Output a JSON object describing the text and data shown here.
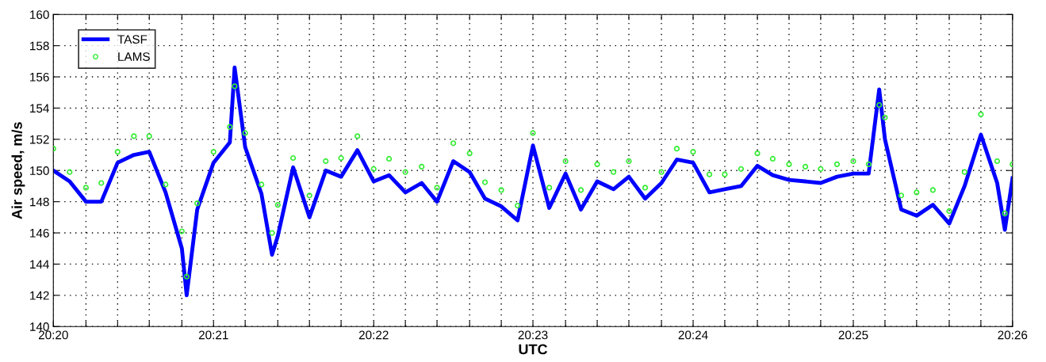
{
  "chart_data": {
    "type": "line",
    "xlabel": "UTC",
    "ylabel": "Air speed, m/s",
    "x": [
      20.3333,
      20.335,
      20.3367,
      20.3383,
      20.34,
      20.3417,
      20.3433,
      20.345,
      20.3467,
      20.3472,
      20.3483,
      20.35,
      20.3517,
      20.3522,
      20.3533,
      20.355,
      20.3561,
      20.3567,
      20.3583,
      20.36,
      20.3617,
      20.3633,
      20.365,
      20.3667,
      20.3683,
      20.37,
      20.3717,
      20.3733,
      20.375,
      20.3767,
      20.3783,
      20.38,
      20.3817,
      20.3833,
      20.385,
      20.3867,
      20.3883,
      20.39,
      20.3917,
      20.3933,
      20.395,
      20.3967,
      20.3983,
      20.4,
      20.4017,
      20.4033,
      20.405,
      20.4067,
      20.4083,
      20.41,
      20.4117,
      20.4133,
      20.415,
      20.4167,
      20.4183,
      20.4194,
      20.42,
      20.4217,
      20.4233,
      20.425,
      20.4267,
      20.4283,
      20.43,
      20.4317,
      20.4325,
      20.4333
    ],
    "series": [
      {
        "name": "TASF",
        "color": "#0000ff",
        "values": [
          150.0,
          149.3,
          148.0,
          148.0,
          150.5,
          151.0,
          151.2,
          148.6,
          145.0,
          142.0,
          147.5,
          150.5,
          151.8,
          156.6,
          151.5,
          148.5,
          144.6,
          145.8,
          150.2,
          147.0,
          150.0,
          149.6,
          151.3,
          149.3,
          149.7,
          148.6,
          149.2,
          148.0,
          150.6,
          149.9,
          148.2,
          147.7,
          146.8,
          151.6,
          147.6,
          149.8,
          147.5,
          149.3,
          148.8,
          149.6,
          148.2,
          149.2,
          150.7,
          150.5,
          148.6,
          148.8,
          149.0,
          150.3,
          149.7,
          149.4,
          149.3,
          149.2,
          149.6,
          149.8,
          149.8,
          155.2,
          152.0,
          147.5,
          147.1,
          147.8,
          146.6,
          149.0,
          152.3,
          149.2,
          146.2,
          149.5
        ]
      },
      {
        "name": "LAMS",
        "type": "scatter",
        "marker": "circle",
        "color": "#33ee33",
        "values": [
          151.4,
          149.9,
          148.9,
          149.2,
          151.2,
          152.2,
          152.2,
          149.1,
          146.1,
          143.2,
          147.9,
          151.2,
          152.8,
          155.4,
          152.4,
          149.1,
          146.0,
          147.8,
          150.8,
          148.4,
          150.6,
          150.8,
          152.2,
          150.1,
          150.75,
          149.9,
          150.25,
          148.9,
          151.75,
          151.1,
          149.25,
          148.75,
          147.75,
          152.4,
          148.9,
          150.6,
          148.75,
          150.4,
          149.9,
          150.6,
          148.9,
          149.9,
          151.4,
          151.2,
          149.75,
          149.75,
          150.1,
          151.1,
          150.75,
          150.4,
          150.25,
          150.1,
          150.4,
          150.6,
          150.4,
          154.2,
          153.4,
          148.4,
          148.6,
          148.75,
          147.4,
          149.9,
          153.6,
          150.6,
          147.25,
          150.4
        ]
      }
    ],
    "xlim": [
      20.3333,
      20.4333
    ],
    "xticks": [
      {
        "value": 20.3333,
        "label": "20:20"
      },
      {
        "value": 20.3367,
        "label": null
      },
      {
        "value": 20.34,
        "label": null
      },
      {
        "value": 20.3433,
        "label": null
      },
      {
        "value": 20.3467,
        "label": null
      },
      {
        "value": 20.35,
        "label": "20:21"
      },
      {
        "value": 20.3533,
        "label": null
      },
      {
        "value": 20.3567,
        "label": null
      },
      {
        "value": 20.36,
        "label": null
      },
      {
        "value": 20.3633,
        "label": null
      },
      {
        "value": 20.3667,
        "label": "20:22"
      },
      {
        "value": 20.37,
        "label": null
      },
      {
        "value": 20.3733,
        "label": null
      },
      {
        "value": 20.3767,
        "label": null
      },
      {
        "value": 20.38,
        "label": null
      },
      {
        "value": 20.3833,
        "label": "20:23"
      },
      {
        "value": 20.3867,
        "label": null
      },
      {
        "value": 20.39,
        "label": null
      },
      {
        "value": 20.3933,
        "label": null
      },
      {
        "value": 20.3967,
        "label": null
      },
      {
        "value": 20.4,
        "label": "20:24"
      },
      {
        "value": 20.4033,
        "label": null
      },
      {
        "value": 20.4067,
        "label": null
      },
      {
        "value": 20.41,
        "label": null
      },
      {
        "value": 20.4133,
        "label": null
      },
      {
        "value": 20.4167,
        "label": "20:25"
      },
      {
        "value": 20.42,
        "label": null
      },
      {
        "value": 20.4233,
        "label": null
      },
      {
        "value": 20.4267,
        "label": null
      },
      {
        "value": 20.43,
        "label": null
      },
      {
        "value": 20.4333,
        "label": "20:26"
      }
    ],
    "ylim": [
      140,
      160
    ],
    "yticks": [
      140,
      142,
      144,
      146,
      148,
      150,
      152,
      154,
      156,
      158,
      160
    ],
    "grid": true,
    "legend": "top left"
  }
}
